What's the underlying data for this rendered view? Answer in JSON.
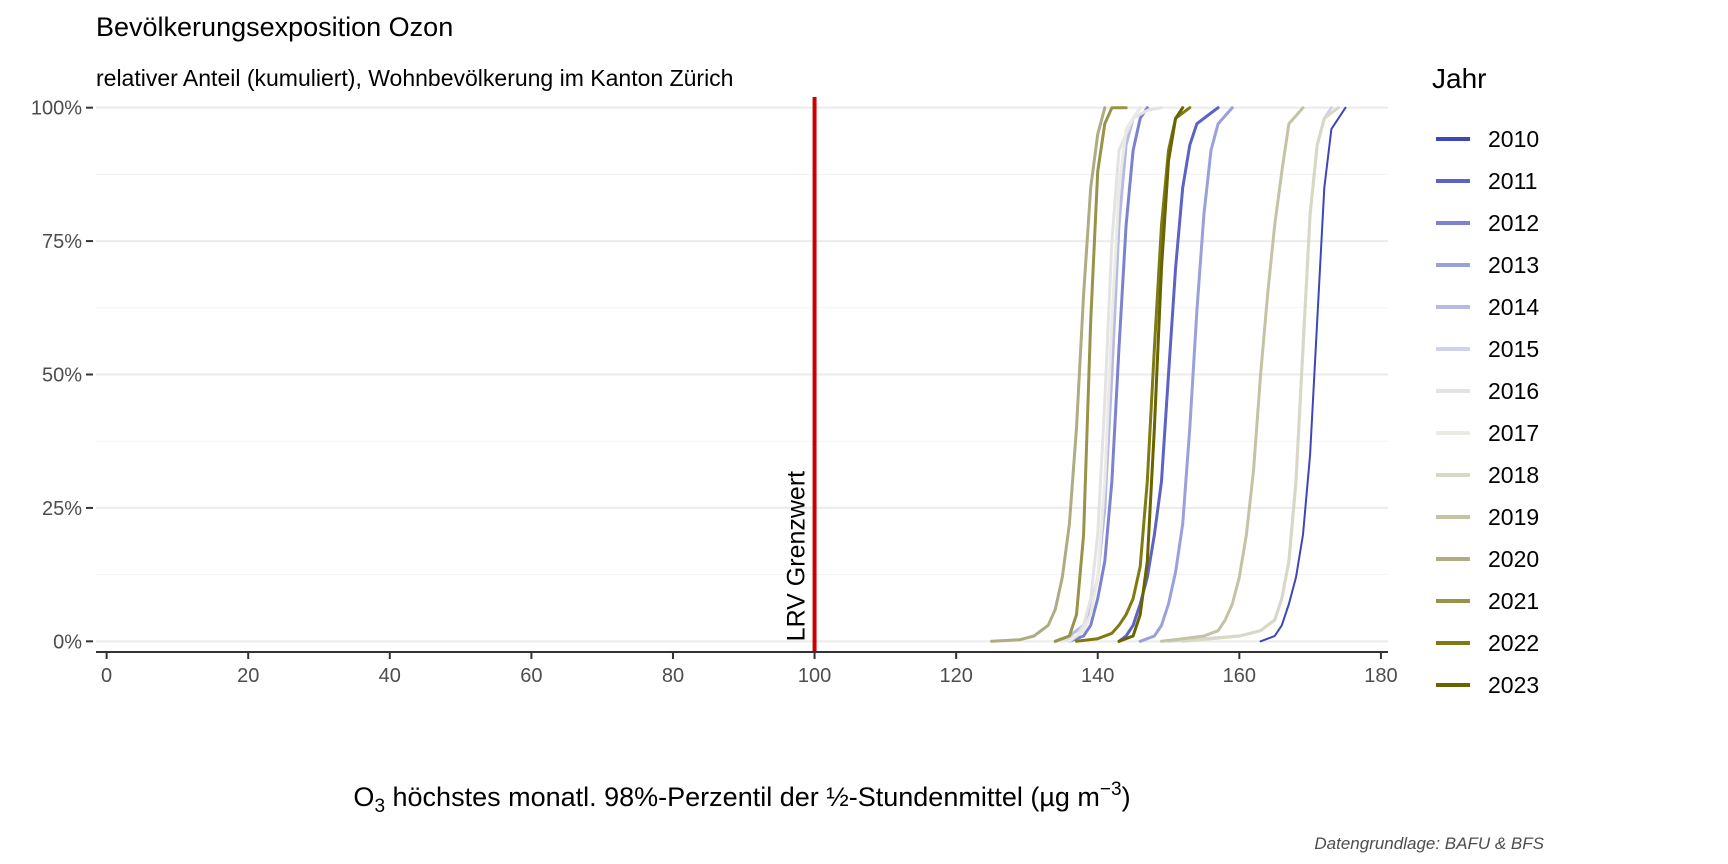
{
  "chart_data": {
    "type": "line",
    "title": "Bevölkerungsexposition Ozon",
    "subtitle": "relativer Anteil (kumuliert), Wohnbevölkerung im Kanton Zürich",
    "xlabel_parts": {
      "pre": "O",
      "sub": "3",
      "mid": " höchstes monatl. 98%-Perzentil der ½-Stundenmittel (µg m",
      "sup": "−3",
      "post": ")"
    },
    "caption": "Datengrundlage: BAFU & BFS",
    "xlim": [
      -1.5,
      181
    ],
    "ylim": [
      -0.02,
      1.02
    ],
    "x_ticks": [
      0,
      20,
      40,
      60,
      80,
      100,
      120,
      140,
      160,
      180
    ],
    "x_tick_labels": [
      "0",
      "20",
      "40",
      "60",
      "80",
      "100",
      "120",
      "140",
      "160",
      "180"
    ],
    "y_ticks": [
      0,
      0.25,
      0.5,
      0.75,
      1
    ],
    "y_tick_labels": [
      "0%",
      "25%",
      "50%",
      "75%",
      "100%"
    ],
    "grid": true,
    "legend": {
      "title": "Jahr",
      "position": "right"
    },
    "annotation": {
      "text": "LRV Grenzwert",
      "x": 100,
      "color": "#cc0000"
    },
    "series": [
      {
        "name": "2010",
        "color": "#3e46b8",
        "width": 2,
        "x": [
          163,
          164,
          165,
          166,
          167,
          168,
          169,
          170,
          171,
          172,
          173,
          175
        ],
        "y": [
          0,
          0.005,
          0.01,
          0.03,
          0.07,
          0.12,
          0.2,
          0.35,
          0.6,
          0.85,
          0.96,
          1
        ]
      },
      {
        "name": "2011",
        "color": "#5c63c4",
        "width": 3,
        "x": [
          143,
          144,
          145,
          146,
          147,
          148,
          149,
          150,
          151,
          152,
          153,
          154,
          156,
          157
        ],
        "y": [
          0,
          0.01,
          0.03,
          0.07,
          0.12,
          0.2,
          0.3,
          0.5,
          0.7,
          0.85,
          0.93,
          0.97,
          0.99,
          1
        ]
      },
      {
        "name": "2012",
        "color": "#7c82cf",
        "width": 3,
        "x": [
          136,
          138,
          139,
          140,
          141,
          142,
          143,
          144,
          145,
          146,
          147
        ],
        "y": [
          0,
          0.01,
          0.03,
          0.08,
          0.15,
          0.3,
          0.55,
          0.78,
          0.92,
          0.98,
          1
        ]
      },
      {
        "name": "2013",
        "color": "#9ca0da",
        "width": 3,
        "x": [
          146,
          148,
          149,
          150,
          151,
          152,
          153,
          154,
          155,
          156,
          157,
          159
        ],
        "y": [
          0,
          0.01,
          0.03,
          0.07,
          0.13,
          0.22,
          0.4,
          0.62,
          0.8,
          0.92,
          0.97,
          1
        ]
      },
      {
        "name": "2014",
        "color": "#b7bae3",
        "width": 3,
        "x": [
          134,
          136,
          138,
          139,
          140,
          141,
          142,
          143,
          144,
          145,
          146
        ],
        "y": [
          0,
          0.01,
          0.03,
          0.06,
          0.12,
          0.25,
          0.5,
          0.78,
          0.93,
          0.98,
          1
        ]
      },
      {
        "name": "2015",
        "color": "#d0d2ec",
        "width": 3,
        "x": [
          150,
          155,
          160,
          163,
          165,
          166,
          167,
          168,
          169,
          170,
          171,
          172,
          173
        ],
        "y": [
          0,
          0.005,
          0.01,
          0.02,
          0.04,
          0.08,
          0.15,
          0.3,
          0.55,
          0.8,
          0.93,
          0.98,
          1
        ]
      },
      {
        "name": "2016",
        "color": "#e3e3e3",
        "width": 3,
        "x": [
          135,
          137,
          138,
          139,
          140,
          141,
          142,
          143,
          145,
          147,
          149
        ],
        "y": [
          0,
          0.01,
          0.03,
          0.08,
          0.2,
          0.45,
          0.75,
          0.92,
          0.98,
          0.995,
          1
        ]
      },
      {
        "name": "2017",
        "color": "#ebebe6",
        "width": 3,
        "x": [
          136,
          138,
          139,
          140,
          141,
          142,
          143,
          144,
          146
        ],
        "y": [
          0,
          0.02,
          0.05,
          0.12,
          0.3,
          0.6,
          0.85,
          0.96,
          1
        ]
      },
      {
        "name": "2018",
        "color": "#d9d8c5",
        "width": 3,
        "x": [
          152,
          156,
          160,
          163,
          165,
          166,
          167,
          168,
          169,
          170,
          171,
          172,
          174
        ],
        "y": [
          0,
          0.005,
          0.01,
          0.02,
          0.04,
          0.08,
          0.15,
          0.3,
          0.55,
          0.8,
          0.93,
          0.98,
          1
        ]
      },
      {
        "name": "2019",
        "color": "#c4c3a4",
        "width": 3,
        "x": [
          149,
          152,
          155,
          157,
          158,
          159,
          160,
          161,
          162,
          163,
          164,
          165,
          166,
          167,
          169
        ],
        "y": [
          0,
          0.005,
          0.01,
          0.02,
          0.04,
          0.07,
          0.12,
          0.2,
          0.32,
          0.5,
          0.65,
          0.78,
          0.88,
          0.97,
          1
        ]
      },
      {
        "name": "2020",
        "color": "#aeac82",
        "width": 3,
        "x": [
          125,
          129,
          131,
          133,
          134,
          135,
          136,
          137,
          138,
          139,
          140,
          141
        ],
        "y": [
          0,
          0.003,
          0.01,
          0.03,
          0.06,
          0.12,
          0.22,
          0.4,
          0.65,
          0.85,
          0.95,
          1
        ]
      },
      {
        "name": "2021",
        "color": "#979349",
        "width": 3,
        "x": [
          134,
          136,
          137,
          138,
          139,
          140,
          141,
          142,
          144
        ],
        "y": [
          0,
          0.01,
          0.05,
          0.2,
          0.6,
          0.88,
          0.97,
          1,
          1
        ]
      },
      {
        "name": "2022",
        "color": "#7f7a12",
        "width": 3,
        "x": [
          137,
          140,
          142,
          143,
          144,
          145,
          146,
          147,
          148,
          149,
          150,
          151,
          153
        ],
        "y": [
          0,
          0.005,
          0.015,
          0.03,
          0.05,
          0.08,
          0.14,
          0.3,
          0.55,
          0.78,
          0.92,
          0.98,
          1
        ]
      },
      {
        "name": "2023",
        "color": "#686400",
        "width": 3,
        "x": [
          143,
          145,
          146,
          147,
          148,
          149,
          150,
          151,
          152
        ],
        "y": [
          0,
          0.01,
          0.05,
          0.15,
          0.4,
          0.7,
          0.9,
          0.98,
          1
        ]
      }
    ]
  }
}
